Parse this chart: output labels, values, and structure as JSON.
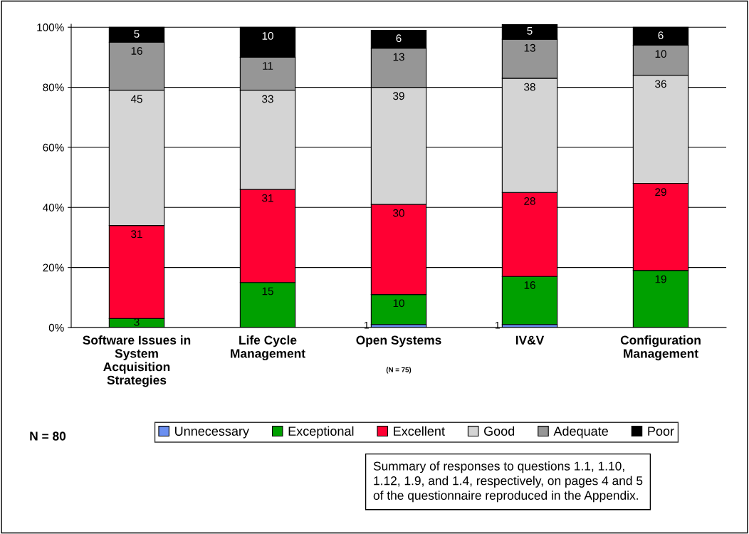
{
  "chart_data": {
    "type": "bar",
    "stacked": true,
    "categories": [
      "Software Issues in\nSystem\nAcquisition\nStrategies",
      "Life Cycle\nManagement",
      "Open Systems",
      "IV&V",
      "Configuration\nManagement"
    ],
    "series": [
      {
        "name": "Unnecessary",
        "color": "#6b8ff0",
        "values": [
          null,
          null,
          1,
          1,
          null
        ]
      },
      {
        "name": "Exceptional",
        "color": "#00a000",
        "values": [
          3,
          15,
          10,
          16,
          19
        ]
      },
      {
        "name": "Excellent",
        "color": "#ff0033",
        "values": [
          31,
          31,
          30,
          28,
          29
        ]
      },
      {
        "name": "Good",
        "color": "#d4d4d4",
        "values": [
          45,
          33,
          39,
          38,
          36
        ]
      },
      {
        "name": "Adequate",
        "color": "#969696",
        "values": [
          16,
          11,
          13,
          13,
          10
        ]
      },
      {
        "name": "Poor",
        "color": "#000000",
        "values": [
          5,
          10,
          6,
          5,
          6
        ]
      }
    ],
    "ylim": [
      0,
      101
    ],
    "yticks": [
      {
        "value": 0,
        "label": "0%"
      },
      {
        "value": 20,
        "label": "20%"
      },
      {
        "value": 40,
        "label": "40%"
      },
      {
        "value": 60,
        "label": "60%"
      },
      {
        "value": 80,
        "label": "80%"
      },
      {
        "value": 100,
        "label": "100%"
      }
    ],
    "grid": "y",
    "legend": "bottom",
    "data_labels": true,
    "annotations": [
      "(N = 75)",
      "N = 80",
      "Summary of responses to questions 1.1, 1.10,\n1.12, 1.9, and 1.4, respectively, on pages 4 and 5\nof the questionnaire reproduced in the Appendix."
    ]
  }
}
